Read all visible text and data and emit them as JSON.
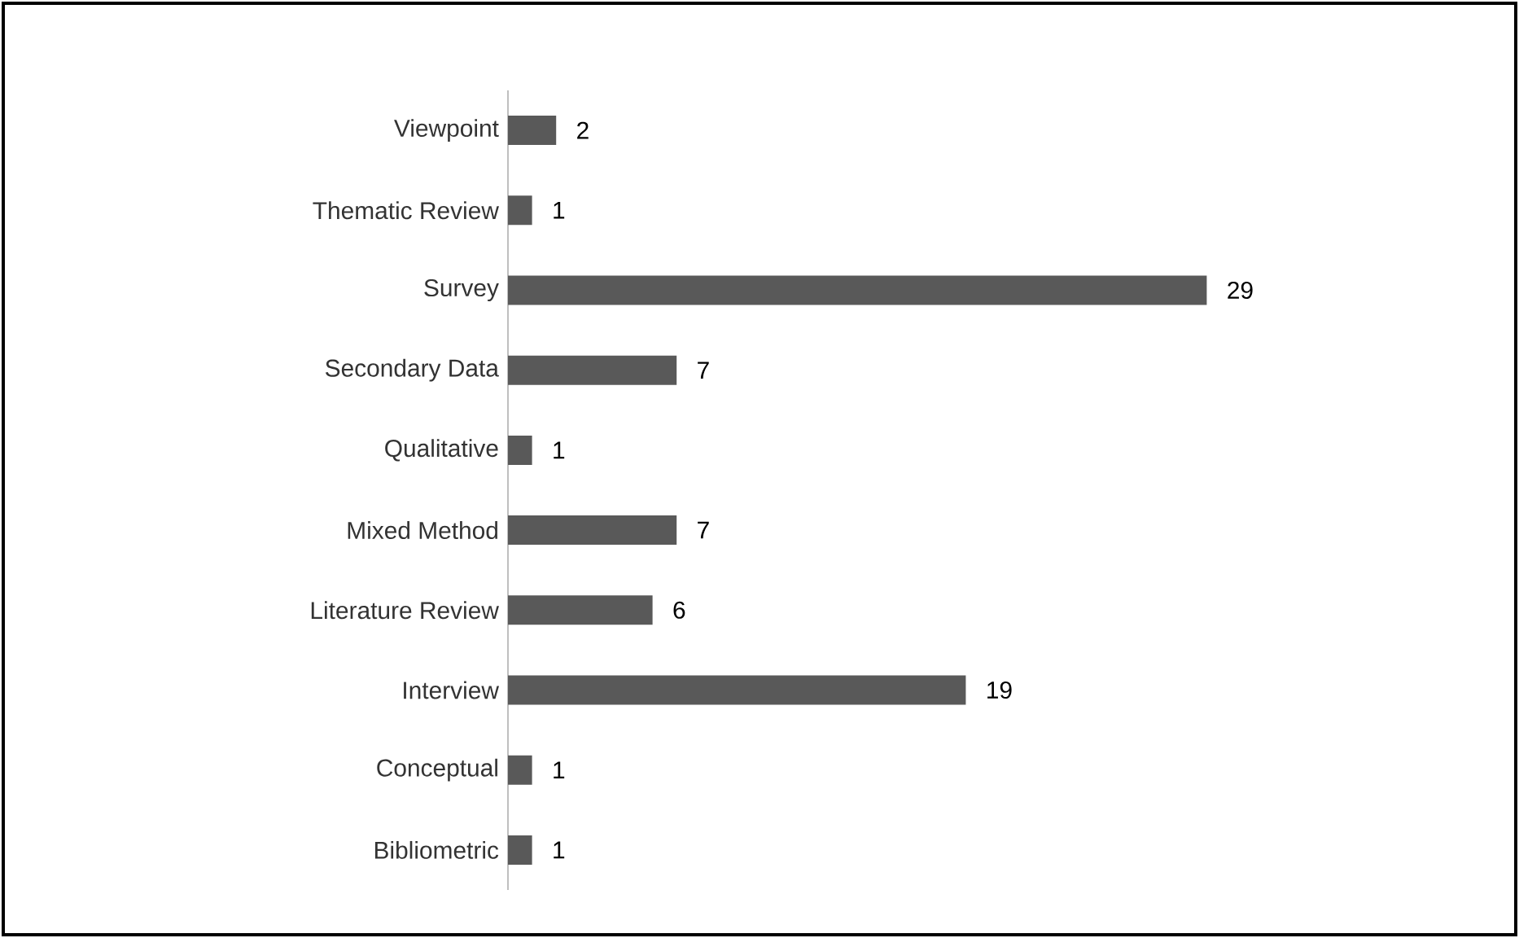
{
  "chart_data": {
    "type": "bar",
    "orientation": "horizontal",
    "categories": [
      "Viewpoint",
      "Thematic Review",
      "Survey",
      "Secondary Data",
      "Qualitative",
      "Mixed Method",
      "Literature Review",
      "Interview",
      "Conceptual",
      "Bibliometric"
    ],
    "values": [
      2,
      1,
      29,
      7,
      1,
      7,
      6,
      19,
      1,
      1
    ],
    "color": "#595959",
    "data_labels": true
  }
}
